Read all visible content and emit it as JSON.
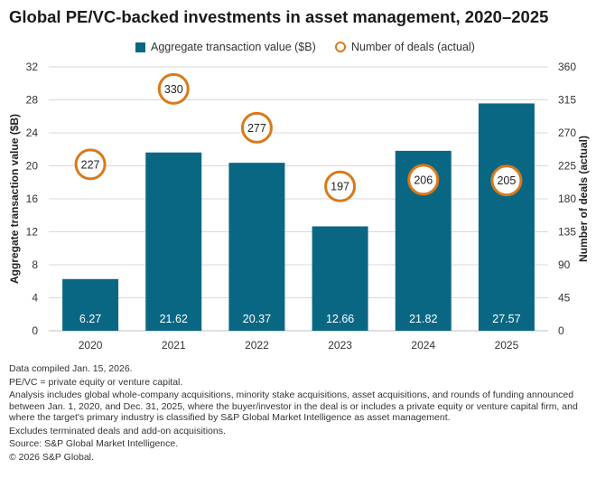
{
  "chart_data": {
    "type": "bar",
    "title": "Global PE/VC-backed investments in asset management, 2020–2025",
    "categories": [
      "2020",
      "2021",
      "2022",
      "2023",
      "2024",
      "2025"
    ],
    "series": [
      {
        "name": "Aggregate transaction value ($B)",
        "kind": "bar",
        "axis": "left",
        "values": [
          6.27,
          21.62,
          20.37,
          12.66,
          21.82,
          27.57
        ],
        "labels": [
          "6.27",
          "21.62",
          "20.37",
          "12.66",
          "21.82",
          "27.57"
        ]
      },
      {
        "name": "Number of deals (actual)",
        "kind": "circle-marker",
        "axis": "right",
        "values": [
          227,
          330,
          277,
          197,
          206,
          205
        ],
        "labels": [
          "227",
          "330",
          "277",
          "197",
          "206",
          "205"
        ]
      }
    ],
    "ylabel": "Aggregate transaction value ($B)",
    "ylabel_right": "Number of deals (actual)",
    "ylim": [
      0,
      32
    ],
    "ylim_right": [
      0,
      360
    ],
    "yticks": [
      "0",
      "4",
      "8",
      "12",
      "16",
      "20",
      "24",
      "28",
      "32"
    ],
    "yticks_right": [
      "0",
      "45",
      "90",
      "135",
      "180",
      "225",
      "270",
      "315",
      "360"
    ],
    "grid": true,
    "legend_position": "top-center"
  },
  "colors": {
    "bar": "#0a6784",
    "marker": "#d9791a",
    "grid": "#d9d9d9"
  },
  "notes": [
    "Data compiled Jan. 15, 2026.",
    "PE/VC = private equity or venture capital.",
    "Analysis includes global whole-company acquisitions, minority stake acquisitions, asset acquisitions, and rounds of funding announced between Jan. 1, 2020, and Dec. 31, 2025, where the buyer/investor in the deal is or includes a private equity or venture capital firm, and where the target's primary industry is classified by S&P Global Market Intelligence as asset management.",
    "Excludes terminated deals and add-on acquisitions.",
    "Source: S&P Global Market Intelligence.",
    "© 2026 S&P Global."
  ]
}
